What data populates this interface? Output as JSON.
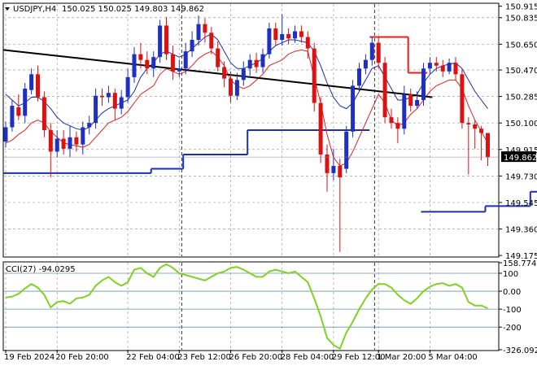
{
  "header": {
    "symbol_timeframe": "USDJPY,H4",
    "ohlc": "150.025 150.025 149.803 149.862"
  },
  "colors": {
    "bull": "#1f2fbf",
    "bear": "#dd1111",
    "blue_line": "#1d2fb0",
    "red_line": "#dd2222",
    "cci": "#7ed321",
    "grid": "#a0a0a0",
    "level_lines": "#6a8fb5",
    "price_tag_bg": "#000000"
  },
  "chart_data": [
    {
      "type": "candlestick",
      "symbol": "USDJPY",
      "timeframe": "H4",
      "ylim": [
        149.17,
        150.93
      ],
      "y_ticks": [
        "150.915",
        "150.835",
        "150.650",
        "150.470",
        "150.285",
        "150.100",
        "149.915",
        "149.730",
        "149.545",
        "149.360",
        "149.175"
      ],
      "current_price": "149.862",
      "x_labels": [
        "19 Feb 2024",
        "20 Feb 20:00",
        "22 Feb 04:00",
        "23 Feb 12:00",
        "26 Feb 20:00",
        "28 Feb 04:00",
        "29 Feb 12:00",
        "1 Mar 20:00",
        "5 Mar 04:00"
      ],
      "candles": [
        [
          149.97,
          150.07,
          149.93,
          150.11
        ],
        [
          150.07,
          150.22,
          150.04,
          150.26
        ],
        [
          150.21,
          150.15,
          150.12,
          150.3
        ],
        [
          150.15,
          150.34,
          150.1,
          150.38
        ],
        [
          150.33,
          150.44,
          150.3,
          150.48
        ],
        [
          150.44,
          150.28,
          150.25,
          150.5
        ],
        [
          150.28,
          150.05,
          150.0,
          150.32
        ],
        [
          150.05,
          149.9,
          149.72,
          150.1
        ],
        [
          149.9,
          149.99,
          149.86,
          150.05
        ],
        [
          149.99,
          149.92,
          149.88,
          150.05
        ],
        [
          149.92,
          150.0,
          149.86,
          150.08
        ],
        [
          150.0,
          149.95,
          149.9,
          150.04
        ],
        [
          149.95,
          150.07,
          149.88,
          150.11
        ],
        [
          150.07,
          150.1,
          150.02,
          150.15
        ],
        [
          150.1,
          150.29,
          150.06,
          150.34
        ],
        [
          150.29,
          150.28,
          150.22,
          150.34
        ],
        [
          150.28,
          150.31,
          150.24,
          150.36
        ],
        [
          150.31,
          150.2,
          150.12,
          150.34
        ],
        [
          150.2,
          150.28,
          150.16,
          150.33
        ],
        [
          150.28,
          150.42,
          150.24,
          150.48
        ],
        [
          150.42,
          150.58,
          150.38,
          150.63
        ],
        [
          150.58,
          150.54,
          150.48,
          150.66
        ],
        [
          150.54,
          150.48,
          150.44,
          150.6
        ],
        [
          150.48,
          150.56,
          150.42,
          150.6
        ],
        [
          150.56,
          150.78,
          150.52,
          150.82
        ],
        [
          150.78,
          150.58,
          150.54,
          150.84
        ],
        [
          150.58,
          150.46,
          150.4,
          150.64
        ],
        [
          150.46,
          150.48,
          150.42,
          150.54
        ],
        [
          150.48,
          150.6,
          150.44,
          150.66
        ],
        [
          150.6,
          150.68,
          150.56,
          150.74
        ],
        [
          150.68,
          150.79,
          150.64,
          150.85
        ],
        [
          150.79,
          150.73,
          150.66,
          150.83
        ],
        [
          150.73,
          150.62,
          150.58,
          150.77
        ],
        [
          150.62,
          150.49,
          150.46,
          150.67
        ],
        [
          150.49,
          150.41,
          150.35,
          150.53
        ],
        [
          150.41,
          150.29,
          150.24,
          150.46
        ],
        [
          150.29,
          150.4,
          150.26,
          150.45
        ],
        [
          150.4,
          150.48,
          150.36,
          150.53
        ],
        [
          150.48,
          150.54,
          150.43,
          150.58
        ],
        [
          150.54,
          150.49,
          150.45,
          150.59
        ],
        [
          150.49,
          150.58,
          150.45,
          150.62
        ],
        [
          150.58,
          150.76,
          150.55,
          150.8
        ],
        [
          150.76,
          150.68,
          150.64,
          150.8
        ],
        [
          150.68,
          150.72,
          150.64,
          150.86
        ],
        [
          150.72,
          150.69,
          150.65,
          150.76
        ],
        [
          150.69,
          150.74,
          150.66,
          150.78
        ],
        [
          150.74,
          150.7,
          150.66,
          150.78
        ],
        [
          150.7,
          150.62,
          150.55,
          150.74
        ],
        [
          150.62,
          150.24,
          150.18,
          150.66
        ],
        [
          150.24,
          149.88,
          149.82,
          150.28
        ],
        [
          149.88,
          149.75,
          149.62,
          149.95
        ],
        [
          149.75,
          149.8,
          149.7,
          149.92
        ],
        [
          149.8,
          149.72,
          149.2,
          149.85
        ],
        [
          149.78,
          150.04,
          149.75,
          150.08
        ],
        [
          150.04,
          150.36,
          150.0,
          150.4
        ],
        [
          150.36,
          150.48,
          150.32,
          150.52
        ],
        [
          150.48,
          150.54,
          150.44,
          150.58
        ],
        [
          150.54,
          150.66,
          150.5,
          150.7
        ],
        [
          150.66,
          150.52,
          150.48,
          150.7
        ],
        [
          150.52,
          150.14,
          150.1,
          150.56
        ],
        [
          150.14,
          150.1,
          150.06,
          150.2
        ],
        [
          150.1,
          150.06,
          149.96,
          150.14
        ],
        [
          150.06,
          150.3,
          150.02,
          150.36
        ],
        [
          150.3,
          150.22,
          150.18,
          150.34
        ],
        [
          150.22,
          150.26,
          150.2,
          150.32
        ],
        [
          150.26,
          150.48,
          150.22,
          150.52
        ],
        [
          150.48,
          150.52,
          150.44,
          150.56
        ],
        [
          150.52,
          150.5,
          150.46,
          150.56
        ],
        [
          150.5,
          150.46,
          150.42,
          150.54
        ],
        [
          150.46,
          150.52,
          150.44,
          150.55
        ],
        [
          150.52,
          150.44,
          150.4,
          150.56
        ],
        [
          150.44,
          150.1,
          150.06,
          150.48
        ],
        [
          150.1,
          150.09,
          149.74,
          150.14
        ],
        [
          150.09,
          150.06,
          149.92,
          150.12
        ],
        [
          150.06,
          150.03,
          149.84,
          150.08
        ],
        [
          150.03,
          149.86,
          149.8,
          150.03
        ]
      ],
      "blue_line": [
        150.3,
        150.26,
        150.22,
        150.24,
        150.28,
        150.28,
        150.25,
        150.2,
        150.14,
        150.1,
        150.08,
        150.06,
        150.05,
        150.07,
        150.12,
        150.17,
        150.2,
        150.22,
        150.24,
        150.26,
        150.32,
        150.42,
        150.48,
        150.52,
        150.58,
        150.6,
        150.58,
        150.56,
        150.58,
        150.62,
        150.66,
        150.7,
        150.72,
        150.68,
        150.6,
        150.52,
        150.48,
        150.48,
        150.5,
        150.52,
        150.55,
        150.6,
        150.64,
        150.66,
        150.68,
        150.68,
        150.67,
        150.66,
        150.6,
        150.5,
        150.38,
        150.28,
        150.22,
        150.2,
        150.24,
        150.32,
        150.4,
        150.48,
        150.5,
        150.42,
        150.34,
        150.26,
        150.26,
        150.28,
        150.3,
        150.38,
        150.44,
        150.48,
        150.5,
        150.51,
        150.52,
        150.48,
        150.4,
        150.32,
        150.26,
        150.2
      ],
      "red_line": [
        149.96,
        149.98,
        150.02,
        150.05,
        150.1,
        150.12,
        150.1,
        150.04,
        150.0,
        149.96,
        149.95,
        149.94,
        149.93,
        149.95,
        150.0,
        150.05,
        150.1,
        150.12,
        150.14,
        150.18,
        150.24,
        150.3,
        150.33,
        150.36,
        150.44,
        150.48,
        150.46,
        150.44,
        150.46,
        150.5,
        150.55,
        150.58,
        150.6,
        150.56,
        150.5,
        150.4,
        150.36,
        150.34,
        150.36,
        150.4,
        150.44,
        150.5,
        150.52,
        150.54,
        150.58,
        150.6,
        150.61,
        150.6,
        150.42,
        150.24,
        150.02,
        149.86,
        149.8,
        149.82,
        149.9,
        150.0,
        150.1,
        150.2,
        150.3,
        150.24,
        150.12,
        150.08,
        150.1,
        150.16,
        150.2,
        150.26,
        150.32,
        150.36,
        150.38,
        150.4,
        150.4,
        150.34,
        150.22,
        150.12,
        150.04,
        149.96
      ],
      "trendline": [
        [
          0,
          150.61
        ],
        [
          66,
          150.28
        ]
      ],
      "blue_steps": [
        [
          0,
          23,
          149.75
        ],
        [
          23,
          28,
          149.78
        ],
        [
          28,
          38,
          149.88
        ],
        [
          38,
          57,
          150.05
        ],
        [
          65,
          75,
          149.48
        ],
        [
          75,
          82,
          149.52
        ],
        [
          82,
          88,
          149.62
        ]
      ],
      "red_steps": [
        [
          57,
          63,
          150.7
        ],
        [
          63,
          66,
          150.45
        ]
      ]
    },
    {
      "type": "line",
      "name": "CCI(27)",
      "label": "CCI(27) -94.0295",
      "ylim": [
        -326.0929,
        158.7743
      ],
      "y_ticks": [
        "158.7743",
        "100",
        "0.00",
        "-100",
        "-200",
        "-326.0929"
      ],
      "levels": [
        100,
        0,
        -100,
        -200
      ],
      "values": [
        -35,
        -30,
        -15,
        15,
        40,
        20,
        -20,
        -90,
        -60,
        -55,
        -70,
        -40,
        -35,
        -20,
        30,
        60,
        80,
        50,
        30,
        50,
        120,
        130,
        100,
        80,
        130,
        150,
        130,
        100,
        90,
        80,
        70,
        60,
        80,
        100,
        110,
        130,
        135,
        120,
        100,
        80,
        80,
        110,
        120,
        110,
        100,
        110,
        80,
        50,
        -40,
        -140,
        -260,
        -300,
        -320,
        -230,
        -170,
        -100,
        -40,
        10,
        40,
        40,
        20,
        -20,
        -50,
        -70,
        -40,
        0,
        25,
        40,
        45,
        30,
        40,
        20,
        -60,
        -80,
        -80,
        -95
      ]
    }
  ]
}
